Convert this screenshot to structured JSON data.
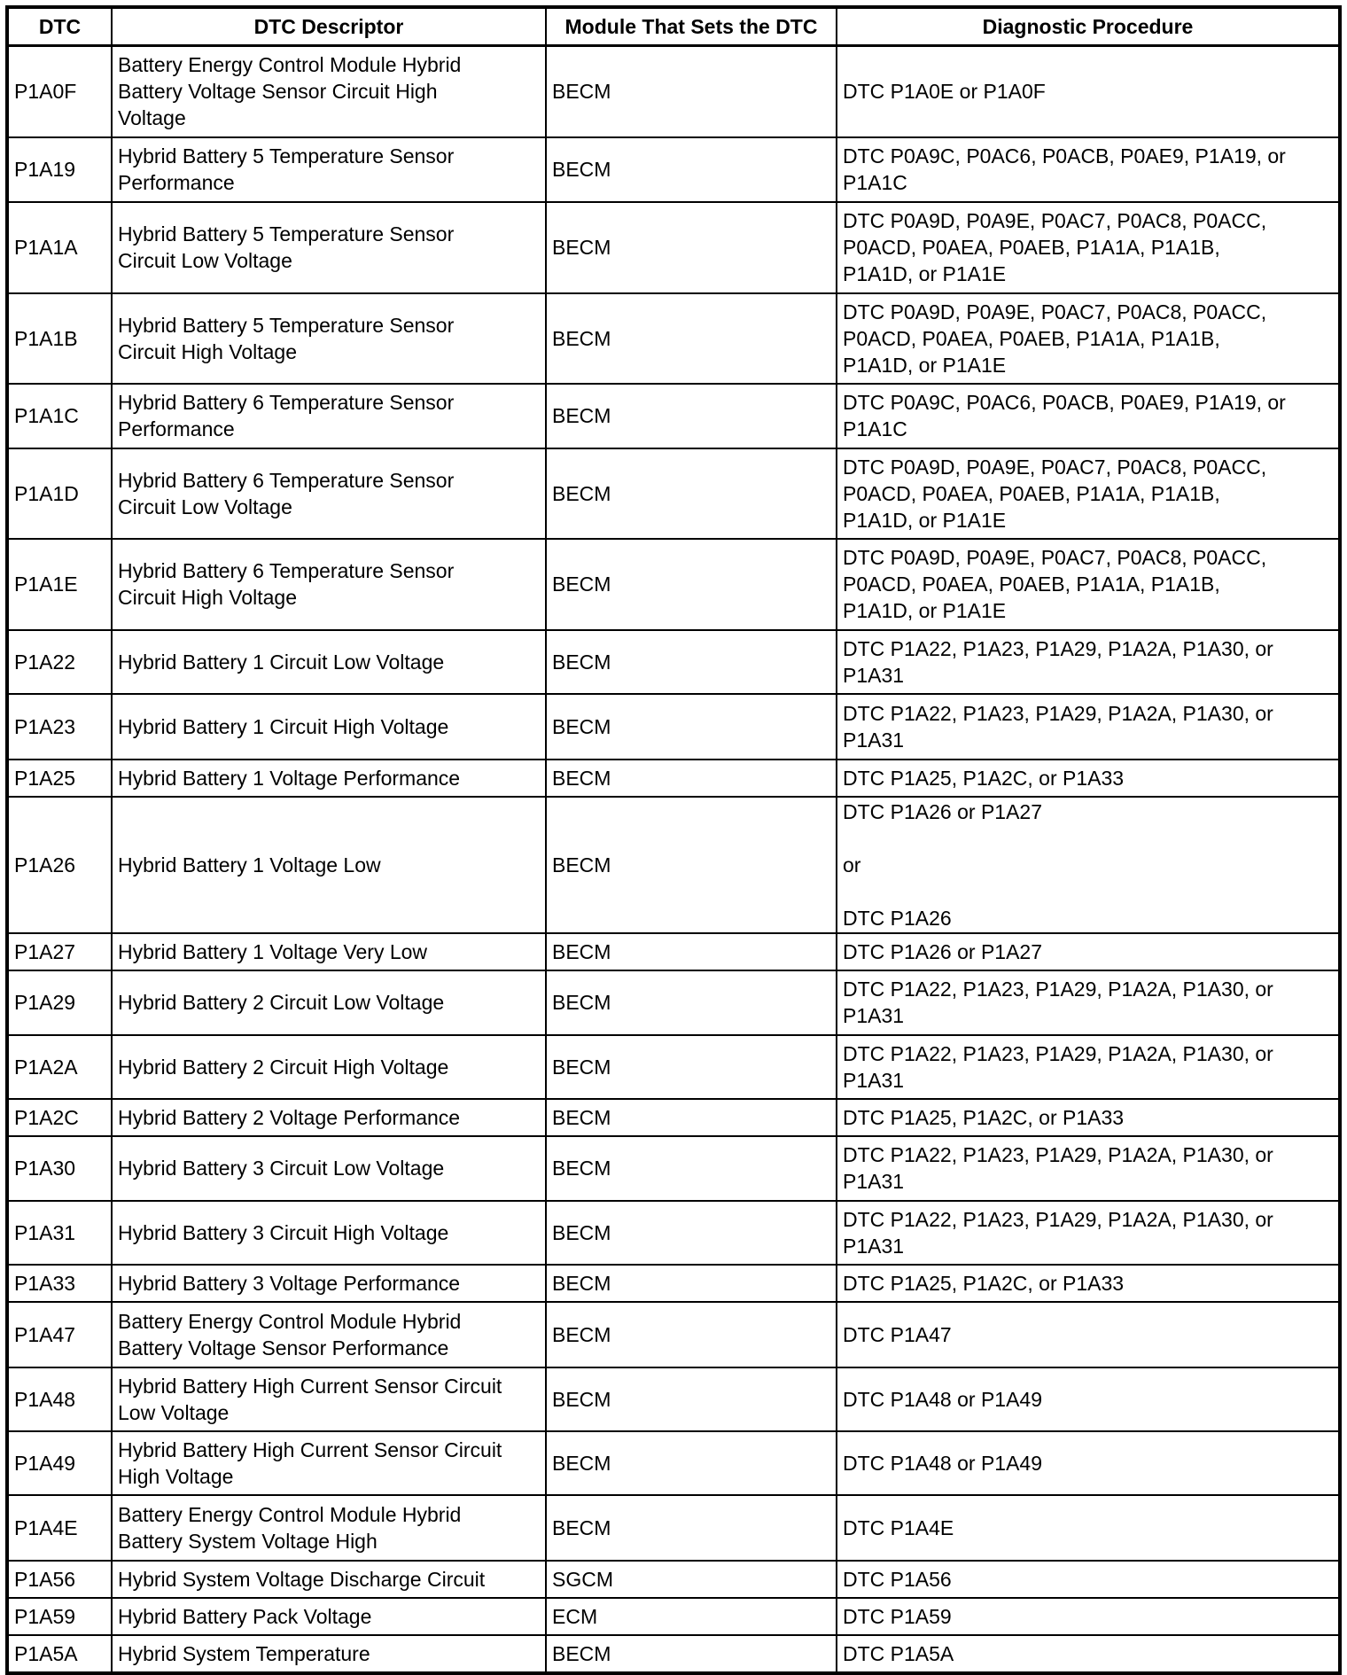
{
  "table": {
    "headers": [
      "DTC",
      "DTC Descriptor",
      "Module That Sets the DTC",
      "Diagnostic Procedure"
    ],
    "rows": [
      [
        "P1A0F",
        "Battery Energy Control Module Hybrid\nBattery Voltage Sensor Circuit High\nVoltage",
        "BECM",
        "DTC P1A0E or P1A0F"
      ],
      [
        "P1A19",
        "Hybrid Battery 5 Temperature Sensor\nPerformance",
        "BECM",
        "DTC P0A9C, P0AC6, P0ACB, P0AE9, P1A19, or\nP1A1C"
      ],
      [
        "P1A1A",
        "Hybrid Battery 5 Temperature Sensor\nCircuit Low Voltage",
        "BECM",
        "DTC P0A9D, P0A9E, P0AC7, P0AC8, P0ACC,\nP0ACD, P0AEA, P0AEB, P1A1A, P1A1B,\nP1A1D, or P1A1E"
      ],
      [
        "P1A1B",
        "Hybrid Battery 5 Temperature Sensor\nCircuit High Voltage",
        "BECM",
        "DTC P0A9D, P0A9E, P0AC7, P0AC8, P0ACC,\nP0ACD, P0AEA, P0AEB, P1A1A, P1A1B,\nP1A1D, or P1A1E"
      ],
      [
        "P1A1C",
        "Hybrid Battery 6 Temperature Sensor\nPerformance",
        "BECM",
        "DTC P0A9C, P0AC6, P0ACB, P0AE9, P1A19, or\nP1A1C"
      ],
      [
        "P1A1D",
        "Hybrid Battery 6 Temperature Sensor\nCircuit Low Voltage",
        "BECM",
        "DTC P0A9D, P0A9E, P0AC7, P0AC8, P0ACC,\nP0ACD, P0AEA, P0AEB, P1A1A, P1A1B,\nP1A1D, or P1A1E"
      ],
      [
        "P1A1E",
        "Hybrid Battery 6 Temperature Sensor\nCircuit High Voltage",
        "BECM",
        "DTC P0A9D, P0A9E, P0AC7, P0AC8, P0ACC,\nP0ACD, P0AEA, P0AEB, P1A1A, P1A1B,\nP1A1D, or P1A1E"
      ],
      [
        "P1A22",
        "Hybrid Battery 1 Circuit Low Voltage",
        "BECM",
        "DTC P1A22, P1A23, P1A29, P1A2A, P1A30, or\nP1A31"
      ],
      [
        "P1A23",
        "Hybrid Battery 1 Circuit High Voltage",
        "BECM",
        "DTC P1A22, P1A23, P1A29, P1A2A, P1A30, or\nP1A31"
      ],
      [
        "P1A25",
        "Hybrid Battery 1 Voltage Performance",
        "BECM",
        "DTC P1A25, P1A2C, or P1A33"
      ],
      [
        "P1A26",
        "Hybrid Battery 1 Voltage Low",
        "BECM",
        "DTC P1A26 or P1A27\n\nor\n\nDTC P1A26"
      ],
      [
        "P1A27",
        "Hybrid Battery 1 Voltage Very Low",
        "BECM",
        "DTC P1A26 or P1A27"
      ],
      [
        "P1A29",
        "Hybrid Battery 2 Circuit Low Voltage",
        "BECM",
        "DTC P1A22, P1A23, P1A29, P1A2A, P1A30, or\nP1A31"
      ],
      [
        "P1A2A",
        "Hybrid Battery 2 Circuit High Voltage",
        "BECM",
        "DTC P1A22, P1A23, P1A29, P1A2A, P1A30, or\nP1A31"
      ],
      [
        "P1A2C",
        "Hybrid Battery 2 Voltage Performance",
        "BECM",
        "DTC P1A25, P1A2C, or P1A33"
      ],
      [
        "P1A30",
        "Hybrid Battery 3 Circuit Low Voltage",
        "BECM",
        "DTC P1A22, P1A23, P1A29, P1A2A, P1A30, or\nP1A31"
      ],
      [
        "P1A31",
        "Hybrid Battery 3 Circuit High Voltage",
        "BECM",
        "DTC P1A22, P1A23, P1A29, P1A2A, P1A30, or\nP1A31"
      ],
      [
        "P1A33",
        "Hybrid Battery 3 Voltage Performance",
        "BECM",
        "DTC P1A25, P1A2C, or P1A33"
      ],
      [
        "P1A47",
        "Battery Energy Control Module Hybrid\nBattery Voltage Sensor Performance",
        "BECM",
        "DTC P1A47"
      ],
      [
        "P1A48",
        "Hybrid Battery High Current Sensor Circuit\nLow Voltage",
        "BECM",
        "DTC P1A48 or P1A49"
      ],
      [
        "P1A49",
        "Hybrid Battery High Current Sensor Circuit\nHigh Voltage",
        "BECM",
        "DTC P1A48 or P1A49"
      ],
      [
        "P1A4E",
        "Battery Energy Control Module Hybrid\nBattery System Voltage High",
        "BECM",
        "DTC P1A4E"
      ],
      [
        "P1A56",
        "Hybrid System Voltage Discharge Circuit",
        "SGCM",
        "DTC P1A56"
      ],
      [
        "P1A59",
        "Hybrid Battery Pack Voltage",
        "ECM",
        "DTC P1A59"
      ],
      [
        "P1A5A",
        "Hybrid System Temperature",
        "BECM",
        "DTC P1A5A"
      ]
    ]
  }
}
